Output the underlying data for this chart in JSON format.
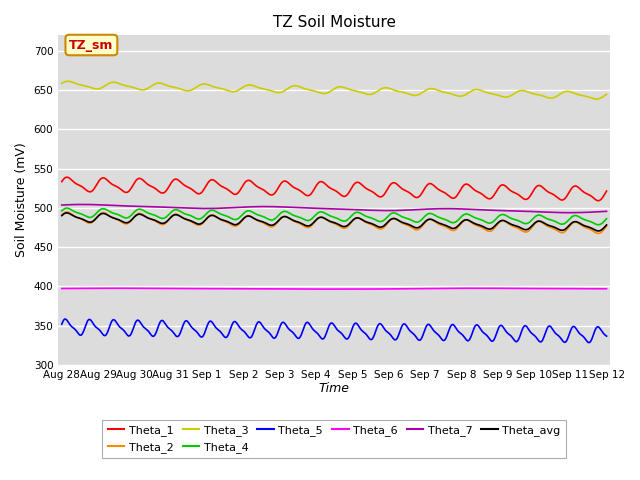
{
  "title": "TZ Soil Moisture",
  "xlabel": "Time",
  "ylabel": "Soil Moisture (mV)",
  "ylim": [
    300,
    720
  ],
  "yticks": [
    300,
    350,
    400,
    450,
    500,
    550,
    600,
    650,
    700
  ],
  "background_color": "#dcdcdc",
  "series_order": [
    "Theta_1",
    "Theta_2",
    "Theta_3",
    "Theta_4",
    "Theta_5",
    "Theta_6",
    "Theta_7",
    "Theta_avg"
  ],
  "series": {
    "Theta_1": {
      "color": "#ff0000",
      "base": 530,
      "amplitude": 8,
      "trend": -12,
      "freq_day": 1.0,
      "noise": 0.5
    },
    "Theta_2": {
      "color": "#ff8800",
      "base": 488,
      "amplitude": 6,
      "trend": -14,
      "freq_day": 1.0,
      "noise": 0.5
    },
    "Theta_3": {
      "color": "#cccc00",
      "base": 657,
      "amplitude": 4,
      "trend": -14,
      "freq_day": 0.8,
      "noise": 0.3
    },
    "Theta_4": {
      "color": "#00cc00",
      "base": 494,
      "amplitude": 5,
      "trend": -10,
      "freq_day": 1.0,
      "noise": 0.4
    },
    "Theta_5": {
      "color": "#0000ff",
      "base": 348,
      "amplitude": 9,
      "trend": -10,
      "freq_day": 1.5,
      "noise": 0.5
    },
    "Theta_6": {
      "color": "#ff00ff",
      "base": 397,
      "amplitude": 0.5,
      "trend": 0,
      "freq_day": 0.1,
      "noise": 0.1
    },
    "Theta_7": {
      "color": "#aa00aa",
      "base": 503,
      "amplitude": 1.5,
      "trend": -8,
      "freq_day": 0.2,
      "noise": 0.1
    },
    "Theta_avg": {
      "color": "#000000",
      "base": 488,
      "amplitude": 5,
      "trend": -12,
      "freq_day": 1.0,
      "noise": 0.3
    }
  },
  "n_points": 1000,
  "n_days": 15,
  "xtick_labels": [
    "Aug 28",
    "Aug 29",
    "Aug 30",
    "Aug 31",
    "Sep 1",
    "Sep 2",
    "Sep 3",
    "Sep 4",
    "Sep 5",
    "Sep 6",
    "Sep 7",
    "Sep 8",
    "Sep 9",
    "Sep 10",
    "Sep 11",
    "Sep 12"
  ],
  "legend_label": "TZ_sm",
  "legend_box_facecolor": "#ffffcc",
  "legend_box_edgecolor": "#cc8800",
  "legend_text_color": "#cc0000"
}
